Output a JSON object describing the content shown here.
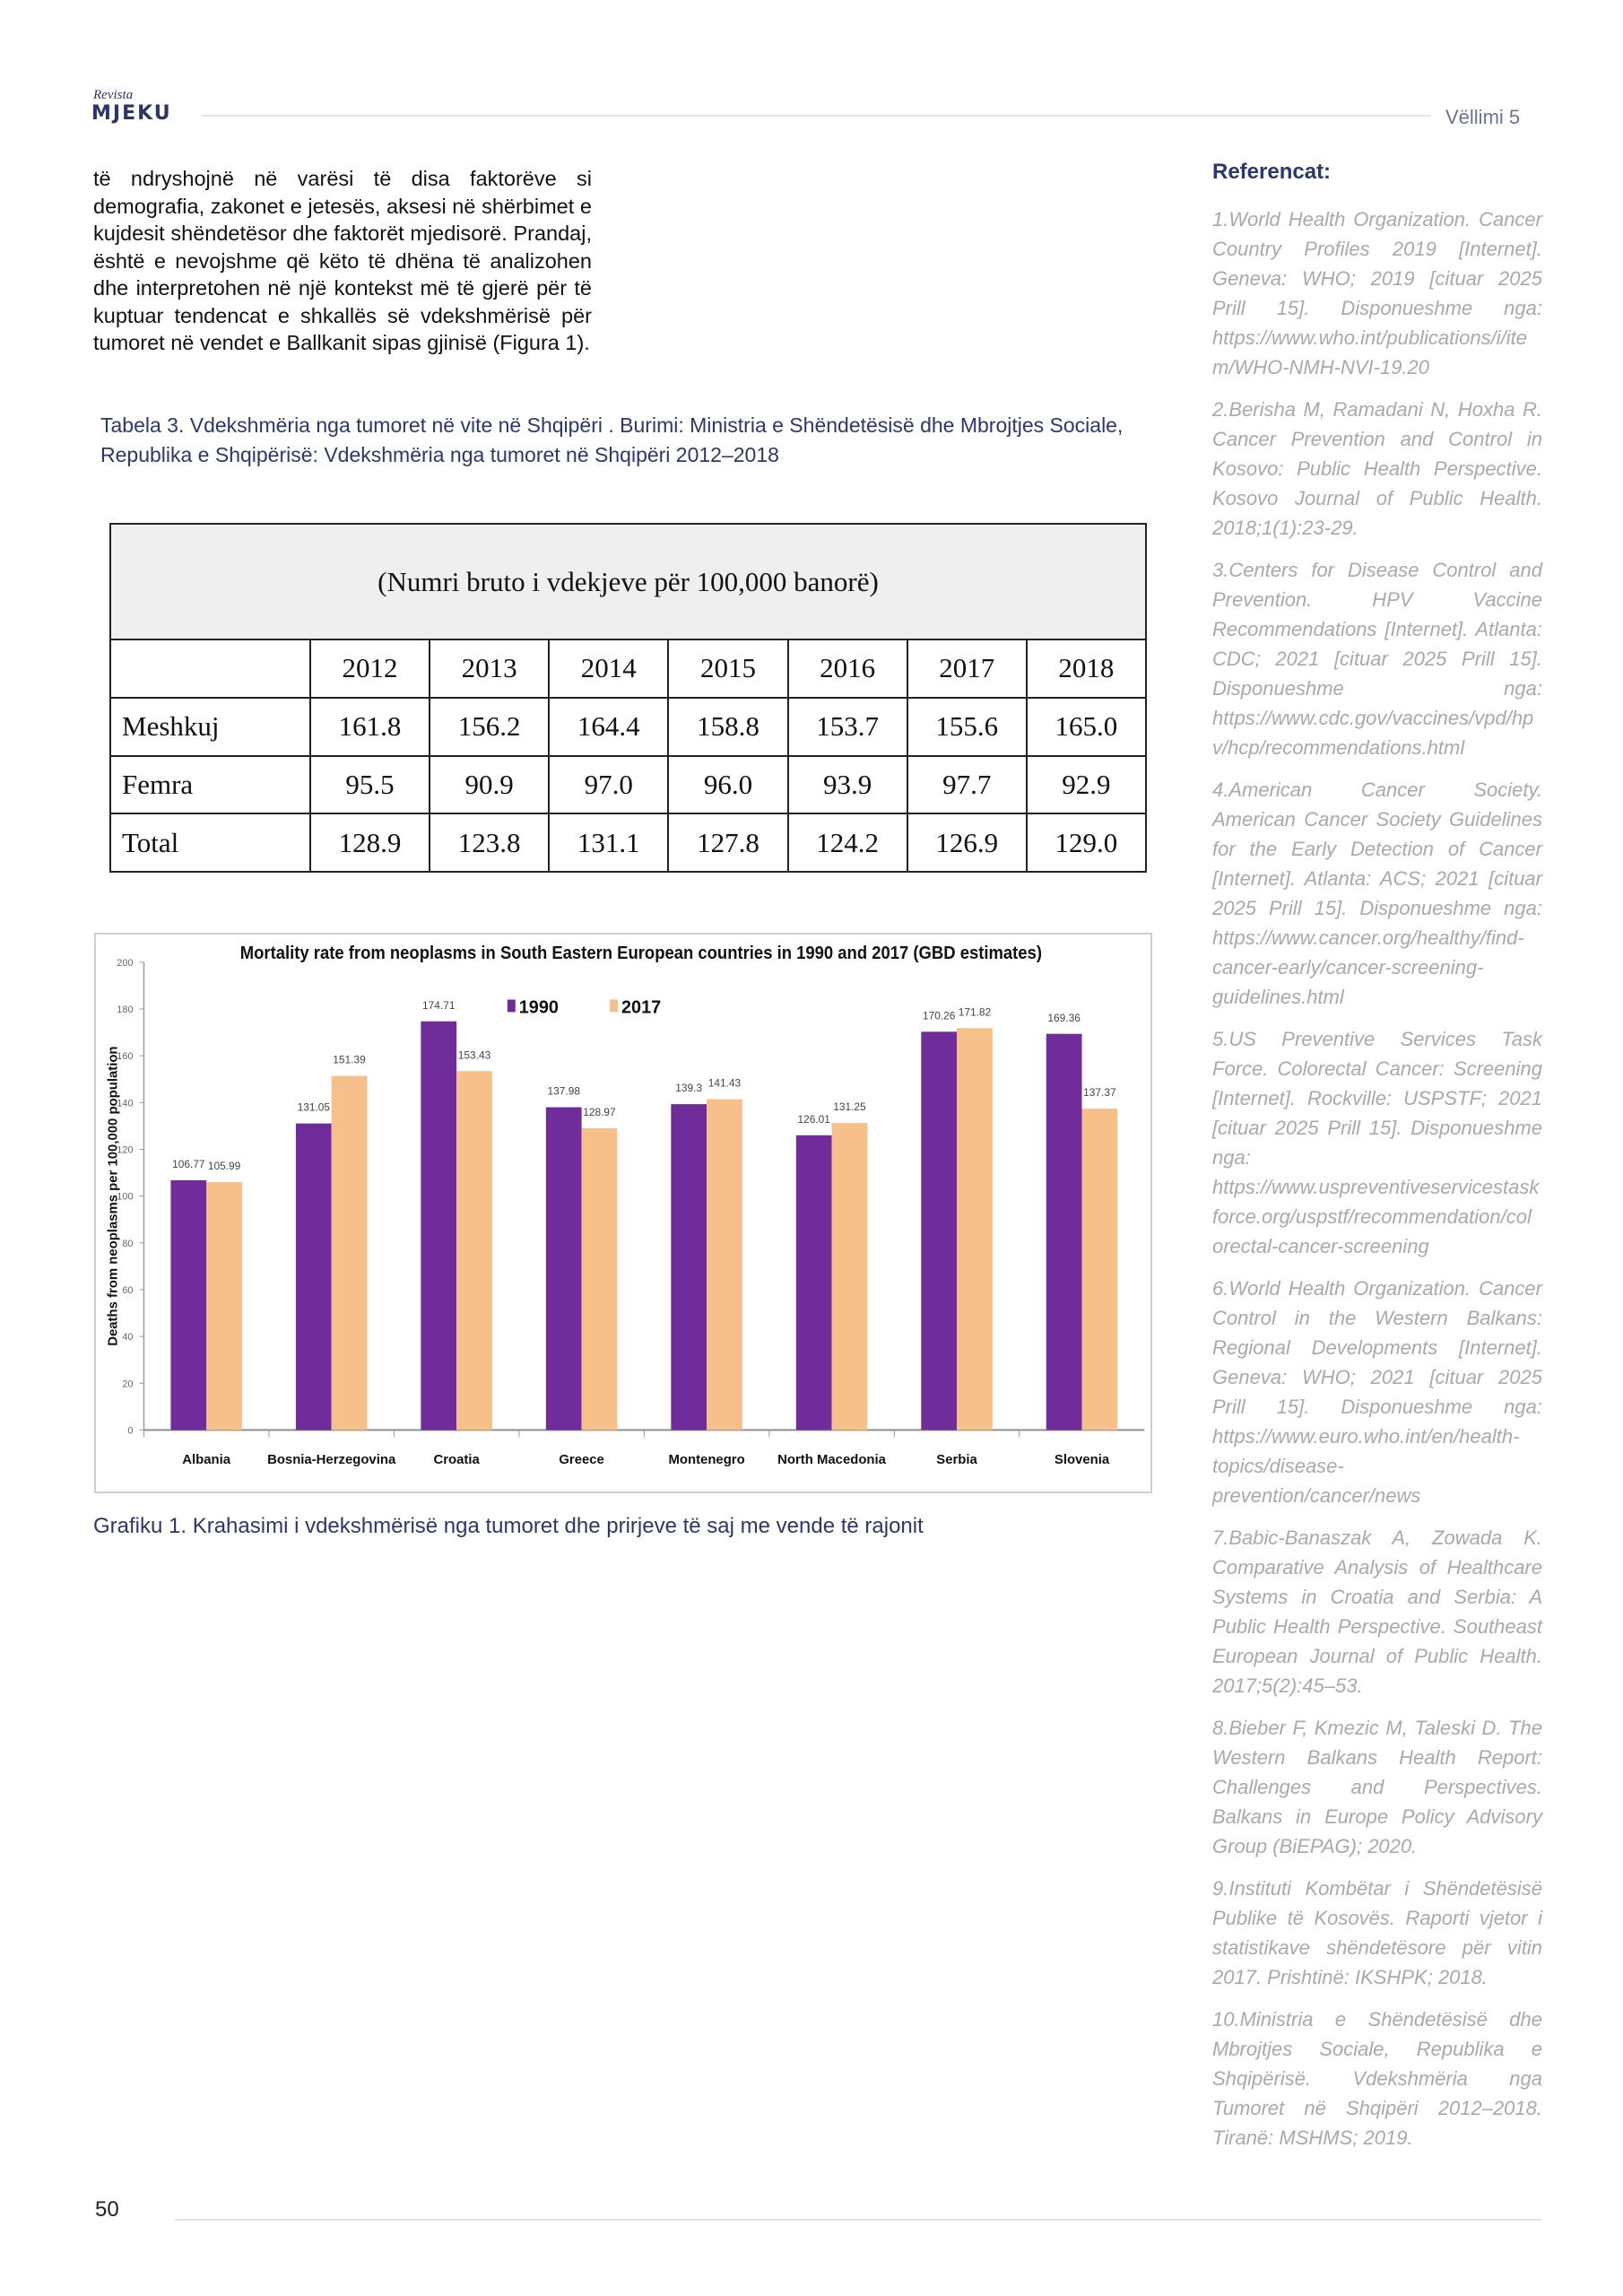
{
  "header": {
    "logo_small": "Revista",
    "logo_big": "MJEKU",
    "volume": "Vëllimi 5"
  },
  "body_text": "të ndryshojnë në varësi të disa faktorëve si demografia, zakonet e jetesës, aksesi në shërbimet e kujdesit shëndetësor dhe faktorët mjedisorë. Prandaj, është e nevojshme që këto të dhëna të analizohen dhe interpretohen në një kontekst më të gjerë për të kuptuar tendencat e shkallës së vdekshmërisë për tumoret në vendet e Ballkanit sipas gjinisë (Figura 1).",
  "table_caption": "Tabela 3. Vdekshmëria nga tumoret në vite në Shqipëri . Burimi: Ministria e Shëndetësisë dhe Mbrojtjes Sociale, Republika e Shqipërisë: Vdekshmëria nga tumoret në Shqipëri 2012–2018",
  "table": {
    "title": "(Numri bruto i vdekjeve për 100,000 banorë)",
    "years": [
      "2012",
      "2013",
      "2014",
      "2015",
      "2016",
      "2017",
      "2018"
    ],
    "rows": [
      {
        "label": "Meshkuj",
        "values": [
          "161.8",
          "156.2",
          "164.4",
          "158.8",
          "153.7",
          "155.6",
          "165.0"
        ]
      },
      {
        "label": "Femra",
        "values": [
          "95.5",
          "90.9",
          "97.0",
          "96.0",
          "93.9",
          "97.7",
          "92.9"
        ]
      },
      {
        "label": "Total",
        "values": [
          "128.9",
          "123.8",
          "131.1",
          "127.8",
          "124.2",
          "126.9",
          "129.0"
        ]
      }
    ]
  },
  "chart_data": {
    "type": "bar",
    "title": "Mortality rate from neoplasms in South Eastern European countries in 1990 and 2017 (GBD estimates)",
    "ylabel": "Deaths from neoplasms per 100,000 population",
    "xlabel": "",
    "ylim": [
      0,
      200
    ],
    "yticks": [
      0,
      20,
      40,
      60,
      80,
      100,
      120,
      140,
      160,
      180,
      200
    ],
    "legend": "top-center",
    "grid": false,
    "categories": [
      "Albania",
      "Bosnia-Herzegovina",
      "Croatia",
      "Greece",
      "Montenegro",
      "North Macedonia",
      "Serbia",
      "Slovenia"
    ],
    "series": [
      {
        "name": "1990",
        "color": "#6f2c9a",
        "values": [
          106.77,
          131.05,
          174.71,
          137.98,
          139.3,
          126.01,
          170.26,
          169.36
        ],
        "labels": [
          "106.77",
          "131.05",
          "174.71",
          "137.98",
          "139.3",
          "126.01",
          "170.26",
          "169.36"
        ]
      },
      {
        "name": "2017",
        "color": "#f7bf8a",
        "values": [
          105.99,
          151.39,
          153.43,
          128.97,
          141.43,
          131.25,
          171.82,
          137.37
        ],
        "labels": [
          "105.99",
          "151.39",
          "153.43",
          "128.97",
          "141.43",
          "131.25",
          "171.82",
          "137.37"
        ]
      }
    ]
  },
  "chart_caption": "Grafiku 1. Krahasimi i vdekshmërisë nga tumoret dhe prirjeve të saj me vende të rajonit",
  "references": {
    "title": "Referencat:",
    "items": [
      "1.World Health Organization. Cancer Country Profiles 2019 [Internet]. Geneva: WHO; 2019 [cituar 2025 Prill 15]. Disponueshme nga: https://www.who.int/publications/i/item/WHO-NMH-NVI-19.20",
      "2.Berisha M, Ramadani N, Hoxha R. Cancer Prevention and Control in Kosovo: Public Health Perspective. Kosovo Journal of Public Health. 2018;1(1):23-29.",
      "3.Centers for Disease Control and Prevention. HPV Vaccine Recommendations [Internet]. Atlanta: CDC; 2021 [cituar 2025 Prill 15]. Disponueshme nga: https://www.cdc.gov/vaccines/vpd/hpv/hcp/recommendations.html",
      "4.American Cancer Society. American Cancer Society Guidelines for the Early Detection of Cancer [Internet]. Atlanta: ACS; 2021 [cituar 2025 Prill 15]. Disponueshme nga: https://www.cancer.org/healthy/find-cancer-early/cancer-screening-guidelines.html",
      "5.US Preventive Services Task Force. Colorectal Cancer: Screening [Internet]. Rockville: USPSTF; 2021 [cituar 2025 Prill 15]. Disponueshme nga: https://www.uspreventiveservicestaskforce.org/uspstf/recommendation/colorectal-cancer-screening",
      "6.World Health Organization. Cancer Control in the Western Balkans: Regional Developments [Internet]. Geneva: WHO; 2021 [cituar 2025 Prill 15]. Disponueshme nga: https://www.euro.who.int/en/health-topics/disease-prevention/cancer/news",
      "7.Babic-Banaszak A, Zowada K. Comparative Analysis of Healthcare Systems in Croatia and Serbia: A Public Health Perspective. Southeast European Journal of Public Health. 2017;5(2):45–53.",
      "8.Bieber F, Kmezic M, Taleski D. The Western Balkans Health Report: Challenges and Perspectives. Balkans in Europe Policy Advisory Group (BiEPAG); 2020.",
      "9.Instituti Kombëtar i Shëndetësisë Publike të Kosovës. Raporti vjetor i statistikave shëndetësore për vitin 2017. Prishtinë: IKSHPK; 2018.",
      "10.Ministria e Shëndetësisë dhe Mbrojtjes Sociale, Republika e Shqipërisë. Vdekshmëria nga Tumoret në Shqipëri 2012–2018. Tiranë: MSHMS; 2019."
    ]
  },
  "page_number": "50"
}
